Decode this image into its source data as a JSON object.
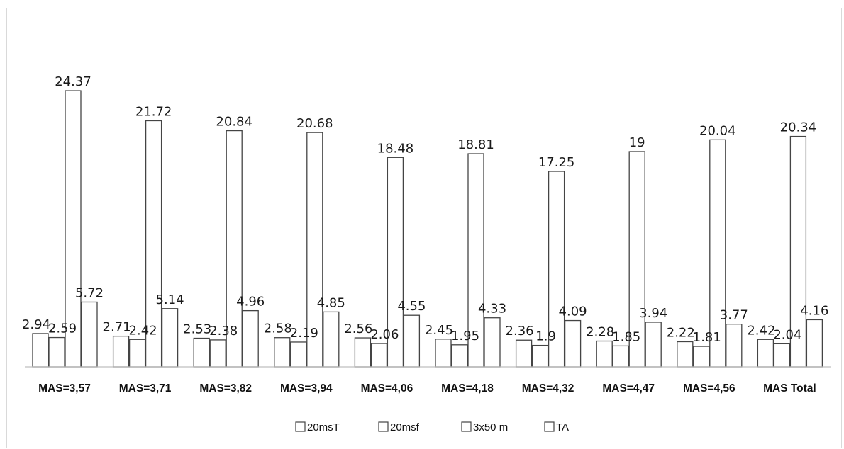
{
  "colors": {
    "bar_fill": "#ffffff",
    "bar_stroke": "#444444",
    "axis": "#bfbfbf",
    "text": "#111111"
  },
  "chart_data": {
    "type": "bar",
    "title": "",
    "xlabel": "",
    "ylabel": "",
    "ylim": [
      0,
      26
    ],
    "grid": false,
    "legend_position": "bottom",
    "categories": [
      "MAS=3,57",
      "MAS=3,71",
      "MAS=3,82",
      "MAS=3,94",
      "MAS=4,06",
      "MAS=4,18",
      "MAS=4,32",
      "MAS=4,47",
      "MAS=4,56",
      "MAS Total"
    ],
    "series": [
      {
        "name": "20msT",
        "values": [
          2.94,
          2.71,
          2.53,
          2.58,
          2.56,
          2.45,
          2.36,
          2.28,
          2.22,
          2.42
        ],
        "labels": [
          "2.94",
          "2.71",
          "2.53",
          "2.58",
          "2.56",
          "2.45",
          "2.36",
          "2.28",
          "2.22",
          "2.42"
        ]
      },
      {
        "name": "20msf",
        "values": [
          2.59,
          2.42,
          2.38,
          2.19,
          2.06,
          1.95,
          1.9,
          1.85,
          1.81,
          2.04
        ],
        "labels": [
          "2.59",
          "2.42",
          "2.38",
          "2.19",
          "2.06",
          "1.95",
          "1.9",
          "1.85",
          "1.81",
          "2.04"
        ]
      },
      {
        "name": "3x50 m",
        "values": [
          24.37,
          21.72,
          20.84,
          20.68,
          18.48,
          18.81,
          17.25,
          19,
          20.04,
          20.34
        ],
        "labels": [
          "24.37",
          "21.72",
          "20.84",
          "20.68",
          "18.48",
          "18.81",
          "17.25",
          "19",
          "20.04",
          "20.34"
        ]
      },
      {
        "name": "TA",
        "values": [
          5.72,
          5.14,
          4.96,
          4.85,
          4.55,
          4.33,
          4.09,
          3.94,
          3.77,
          4.16
        ],
        "labels": [
          "5.72",
          "5.14",
          "4.96",
          "4.85",
          "4.55",
          "4.33",
          "4.09",
          "3.94",
          "3.77",
          "4.16"
        ]
      }
    ]
  }
}
